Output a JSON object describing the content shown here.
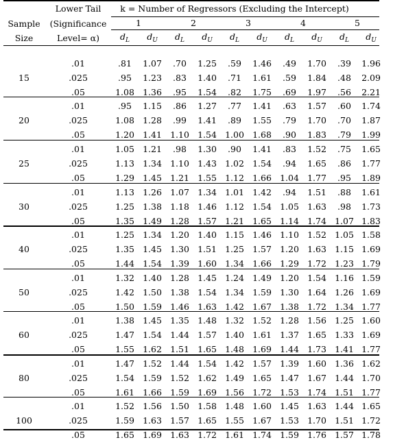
{
  "header": {
    "col_sample": [
      "Sample",
      "Size"
    ],
    "col_level": [
      "Lower Tail",
      "(Significance",
      "Level= α)"
    ],
    "k_title": "k = Number of Regressors (Excluding the Intercept)",
    "k_values": [
      "1",
      "2",
      "3",
      "4",
      "5"
    ],
    "dL": "dL",
    "dU": "dU"
  },
  "rows": [
    {
      "n": "15",
      "levels": [
        {
          "alpha": ".01",
          "vals": [
            ".81",
            "1.07",
            ".70",
            "1.25",
            ".59",
            "1.46",
            ".49",
            "1.70",
            ".39",
            "1.96"
          ]
        },
        {
          "alpha": ".025",
          "vals": [
            ".95",
            "1.23",
            ".83",
            "1.40",
            ".71",
            "1.61",
            ".59",
            "1.84",
            ".48",
            "2.09"
          ]
        },
        {
          "alpha": ".05",
          "vals": [
            "1.08",
            "1.36",
            ".95",
            "1.54",
            ".82",
            "1.75",
            ".69",
            "1.97",
            ".56",
            "2.21"
          ]
        }
      ]
    },
    {
      "n": "20",
      "levels": [
        {
          "alpha": ".01",
          "vals": [
            ".95",
            "1.15",
            ".86",
            "1.27",
            ".77",
            "1.41",
            ".63",
            "1.57",
            ".60",
            "1.74"
          ]
        },
        {
          "alpha": ".025",
          "vals": [
            "1.08",
            "1.28",
            ".99",
            "1.41",
            ".89",
            "1.55",
            ".79",
            "1.70",
            ".70",
            "1.87"
          ]
        },
        {
          "alpha": ".05",
          "vals": [
            "1.20",
            "1.41",
            "1.10",
            "1.54",
            "1.00",
            "1.68",
            ".90",
            "1.83",
            ".79",
            "1.99"
          ]
        }
      ]
    },
    {
      "n": "25",
      "levels": [
        {
          "alpha": ".01",
          "vals": [
            "1.05",
            "1.21",
            ".98",
            "1.30",
            ".90",
            "1.41",
            ".83",
            "1.52",
            ".75",
            "1.65"
          ]
        },
        {
          "alpha": ".025",
          "vals": [
            "1.13",
            "1.34",
            "1.10",
            "1.43",
            "1.02",
            "1.54",
            ".94",
            "1.65",
            ".86",
            "1.77"
          ]
        },
        {
          "alpha": ".05",
          "vals": [
            "1.29",
            "1.45",
            "1.21",
            "1.55",
            "1.12",
            "1.66",
            "1.04",
            "1.77",
            ".95",
            "1.89"
          ]
        }
      ]
    },
    {
      "n": "30",
      "levels": [
        {
          "alpha": ".01",
          "vals": [
            "1.13",
            "1.26",
            "1.07",
            "1.34",
            "1.01",
            "1.42",
            ".94",
            "1.51",
            ".88",
            "1.61"
          ]
        },
        {
          "alpha": ".025",
          "vals": [
            "1.25",
            "1.38",
            "1.18",
            "1.46",
            "1.12",
            "1.54",
            "1.05",
            "1.63",
            ".98",
            "1.73"
          ]
        },
        {
          "alpha": ".05",
          "vals": [
            "1.35",
            "1.49",
            "1.28",
            "1.57",
            "1.21",
            "1.65",
            "1.14",
            "1.74",
            "1.07",
            "1.83"
          ]
        }
      ]
    },
    {
      "n": "40",
      "levels": [
        {
          "alpha": ".01",
          "vals": [
            "1.25",
            "1.34",
            "1.20",
            "1.40",
            "1.15",
            "1.46",
            "1.10",
            "1.52",
            "1.05",
            "1.58"
          ]
        },
        {
          "alpha": ".025",
          "vals": [
            "1.35",
            "1.45",
            "1.30",
            "1.51",
            "1.25",
            "1.57",
            "1.20",
            "1.63",
            "1.15",
            "1.69"
          ]
        },
        {
          "alpha": ".05",
          "vals": [
            "1.44",
            "1.54",
            "1.39",
            "1.60",
            "1.34",
            "1.66",
            "1.29",
            "1.72",
            "1.23",
            "1.79"
          ]
        }
      ]
    },
    {
      "n": "50",
      "levels": [
        {
          "alpha": ".01",
          "vals": [
            "1.32",
            "1.40",
            "1.28",
            "1.45",
            "1.24",
            "1.49",
            "1.20",
            "1.54",
            "1.16",
            "1.59"
          ]
        },
        {
          "alpha": ".025",
          "vals": [
            "1.42",
            "1.50",
            "1.38",
            "1.54",
            "1.34",
            "1.59",
            "1.30",
            "1.64",
            "1.26",
            "1.69"
          ]
        },
        {
          "alpha": ".05",
          "vals": [
            "1.50",
            "1.59",
            "1.46",
            "1.63",
            "1.42",
            "1.67",
            "1.38",
            "1.72",
            "1.34",
            "1.77"
          ]
        }
      ]
    },
    {
      "n": "60",
      "levels": [
        {
          "alpha": ".01",
          "vals": [
            "1.38",
            "1.45",
            "1.35",
            "1.48",
            "1.32",
            "1.52",
            "1.28",
            "1.56",
            "1.25",
            "1.60"
          ]
        },
        {
          "alpha": ".025",
          "vals": [
            "1.47",
            "1.54",
            "1.44",
            "1.57",
            "1.40",
            "1.61",
            "1.37",
            "1.65",
            "1.33",
            "1.69"
          ]
        },
        {
          "alpha": ".05",
          "vals": [
            "1.55",
            "1.62",
            "1.51",
            "1.65",
            "1.48",
            "1.69",
            "1.44",
            "1.73",
            "1.41",
            "1.77"
          ]
        }
      ]
    },
    {
      "n": "80",
      "levels": [
        {
          "alpha": ".01",
          "vals": [
            "1.47",
            "1.52",
            "1.44",
            "1.54",
            "1.42",
            "1.57",
            "1.39",
            "1.60",
            "1.36",
            "1.62"
          ]
        },
        {
          "alpha": ".025",
          "vals": [
            "1.54",
            "1.59",
            "1.52",
            "1.62",
            "1.49",
            "1.65",
            "1.47",
            "1.67",
            "1.44",
            "1.70"
          ]
        },
        {
          "alpha": ".05",
          "vals": [
            "1.61",
            "1.66",
            "1.59",
            "1.69",
            "1.56",
            "1.72",
            "1.53",
            "1.74",
            "1.51",
            "1.77"
          ]
        }
      ]
    },
    {
      "n": "100",
      "levels": [
        {
          "alpha": ".01",
          "vals": [
            "1.52",
            "1.56",
            "1.50",
            "1.58",
            "1.48",
            "1.60",
            "1.45",
            "1.63",
            "1.44",
            "1.65"
          ]
        },
        {
          "alpha": ".025",
          "vals": [
            "1.59",
            "1.63",
            "1.57",
            "1.65",
            "1.55",
            "1.67",
            "1.53",
            "1.70",
            "1.51",
            "1.72"
          ]
        },
        {
          "alpha": ".05",
          "vals": [
            "1.65",
            "1.69",
            "1.63",
            "1.72",
            "1.61",
            "1.74",
            "1.59",
            "1.76",
            "1.57",
            "1.78"
          ]
        }
      ]
    }
  ]
}
